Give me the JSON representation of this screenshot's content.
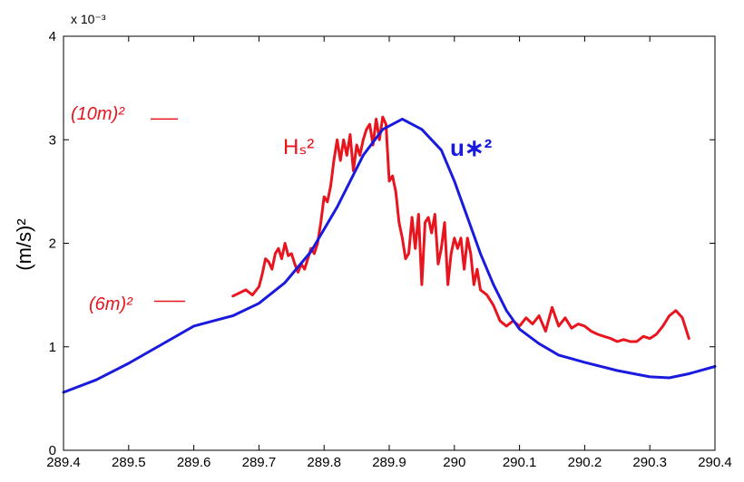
{
  "chart_data": {
    "type": "line",
    "title": "",
    "xlabel": "",
    "ylabel": "(m/s)²",
    "y_exponent_label": "x 10⁻³",
    "xlim": [
      289.4,
      290.4
    ],
    "ylim": [
      0,
      4
    ],
    "x_ticks": [
      "289.4",
      "289.5",
      "289.6",
      "289.7",
      "289.8",
      "289.9",
      "290",
      "290.1",
      "290.2",
      "290.3",
      "290.4"
    ],
    "y_ticks": [
      "0",
      "1",
      "2",
      "3",
      "4"
    ],
    "grid": false,
    "legend": "none",
    "annotations": [
      {
        "text": "(10m)²",
        "y": 3.2
      },
      {
        "text": "(6m)²",
        "y": 1.44
      }
    ],
    "series": [
      {
        "name": "Hₛ²",
        "color": "#e8141e",
        "x": [
          289.66,
          289.67,
          289.68,
          289.69,
          289.7,
          289.705,
          289.71,
          289.715,
          289.72,
          289.725,
          289.73,
          289.735,
          289.74,
          289.745,
          289.75,
          289.755,
          289.76,
          289.765,
          289.77,
          289.775,
          289.78,
          289.785,
          289.79,
          289.795,
          289.8,
          289.805,
          289.81,
          289.815,
          289.82,
          289.825,
          289.83,
          289.835,
          289.84,
          289.845,
          289.85,
          289.855,
          289.86,
          289.865,
          289.87,
          289.875,
          289.88,
          289.885,
          289.89,
          289.895,
          289.9,
          289.905,
          289.91,
          289.915,
          289.92,
          289.925,
          289.93,
          289.935,
          289.94,
          289.945,
          289.95,
          289.955,
          289.96,
          289.965,
          289.97,
          289.975,
          289.98,
          289.985,
          289.99,
          289.995,
          290.0,
          290.005,
          290.01,
          290.015,
          290.02,
          290.025,
          290.03,
          290.035,
          290.04,
          290.05,
          290.06,
          290.07,
          290.08,
          290.09,
          290.1,
          290.11,
          290.12,
          290.13,
          290.14,
          290.15,
          290.16,
          290.17,
          290.18,
          290.19,
          290.2,
          290.21,
          290.22,
          290.23,
          290.24,
          290.25,
          290.26,
          290.27,
          290.28,
          290.29,
          290.3,
          290.31,
          290.32,
          290.33,
          290.34,
          290.35,
          290.36
        ],
        "y": [
          1.49,
          1.52,
          1.55,
          1.5,
          1.58,
          1.7,
          1.85,
          1.82,
          1.75,
          1.9,
          1.95,
          1.85,
          2.0,
          1.88,
          1.9,
          1.8,
          1.72,
          1.8,
          1.75,
          1.85,
          1.95,
          1.9,
          2.0,
          2.2,
          2.45,
          2.4,
          2.55,
          2.8,
          3.0,
          2.8,
          3.0,
          2.85,
          3.05,
          2.7,
          2.95,
          2.85,
          3.0,
          3.1,
          3.15,
          2.95,
          3.2,
          3.0,
          3.22,
          3.15,
          2.6,
          2.65,
          2.5,
          2.2,
          2.05,
          1.85,
          1.9,
          2.25,
          1.95,
          2.28,
          1.6,
          2.2,
          2.25,
          2.1,
          2.28,
          1.8,
          1.95,
          2.2,
          1.6,
          1.9,
          2.05,
          1.95,
          2.05,
          1.75,
          2.05,
          1.9,
          1.6,
          1.75,
          1.55,
          1.5,
          1.4,
          1.25,
          1.2,
          1.25,
          1.2,
          1.28,
          1.22,
          1.3,
          1.15,
          1.38,
          1.2,
          1.28,
          1.18,
          1.22,
          1.2,
          1.15,
          1.12,
          1.1,
          1.08,
          1.05,
          1.07,
          1.05,
          1.05,
          1.1,
          1.08,
          1.12,
          1.2,
          1.3,
          1.35,
          1.28,
          1.08
        ]
      },
      {
        "name": "u∗²",
        "color": "#1a1adf",
        "x": [
          289.4,
          289.45,
          289.5,
          289.55,
          289.6,
          289.63,
          289.66,
          289.7,
          289.74,
          289.78,
          289.82,
          289.86,
          289.89,
          289.92,
          289.95,
          289.98,
          290.0,
          290.02,
          290.04,
          290.06,
          290.08,
          290.1,
          290.13,
          290.16,
          290.2,
          290.25,
          290.3,
          290.33,
          290.36,
          290.4
        ],
        "y": [
          0.56,
          0.68,
          0.84,
          1.02,
          1.2,
          1.25,
          1.3,
          1.42,
          1.62,
          1.92,
          2.35,
          2.85,
          3.1,
          3.2,
          3.1,
          2.9,
          2.6,
          2.25,
          1.9,
          1.6,
          1.35,
          1.17,
          1.03,
          0.92,
          0.85,
          0.77,
          0.71,
          0.7,
          0.74,
          0.81
        ]
      }
    ]
  }
}
